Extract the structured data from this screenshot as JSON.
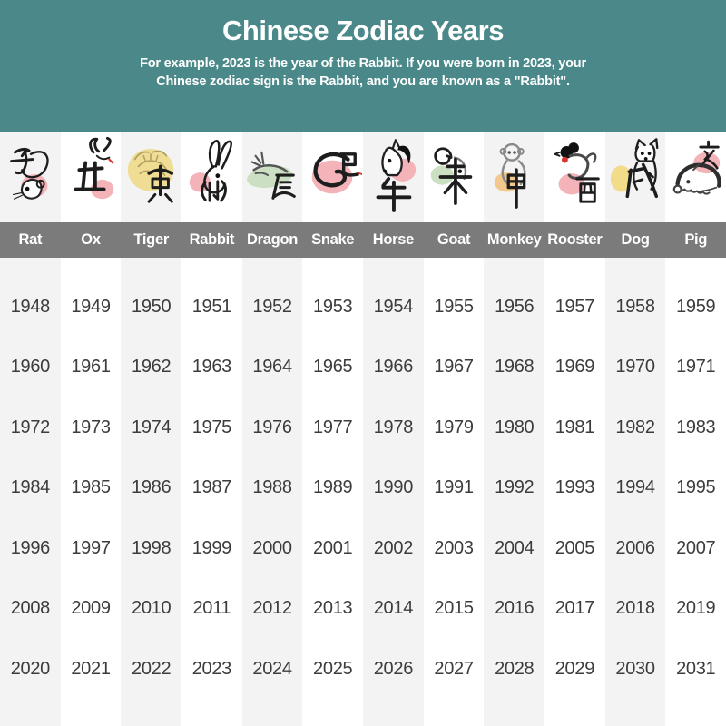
{
  "header": {
    "title": "Chinese Zodiac Years",
    "subtitle_line1": "For example, 2023 is the year of the Rabbit. If you were born in 2023, your",
    "subtitle_line2": "Chinese zodiac sign is the Rabbit, and you are known as a \"Rabbit\".",
    "background_color": "#4a8889",
    "text_color": "#ffffff"
  },
  "table": {
    "name_band_color": "#7b7b7b",
    "column_alt_color": "#f3f3f3",
    "column_base_color": "#ffffff",
    "year_text_color": "#3c3c3c",
    "animals": [
      {
        "name": "Rat",
        "hanzi": "子",
        "blob_color": "#f3b3b8"
      },
      {
        "name": "Ox",
        "hanzi": "丑",
        "blob_color": "#f3b3b8"
      },
      {
        "name": "Tiger",
        "hanzi": "寅",
        "blob_color": "#efdd93"
      },
      {
        "name": "Rabbit",
        "hanzi": "卯",
        "blob_color": "#f3b3b8"
      },
      {
        "name": "Dragon",
        "hanzi": "辰",
        "blob_color": "#cbe0c3"
      },
      {
        "name": "Snake",
        "hanzi": "巳",
        "blob_color": "#f3b3b8"
      },
      {
        "name": "Horse",
        "hanzi": "午",
        "blob_color": "#f3b3b8"
      },
      {
        "name": "Goat",
        "hanzi": "未",
        "blob_color": "#cbe0c3"
      },
      {
        "name": "Monkey",
        "hanzi": "申",
        "blob_color": "#f3c98b"
      },
      {
        "name": "Rooster",
        "hanzi": "酉",
        "blob_color": "#f3b3b8"
      },
      {
        "name": "Dog",
        "hanzi": "戌",
        "blob_color": "#f2dc8a"
      },
      {
        "name": "Pig",
        "hanzi": "亥",
        "blob_color": "#f3b3b8"
      }
    ]
  },
  "chart_data": {
    "type": "table",
    "title": "Chinese Zodiac Years",
    "subtitle": "For example, 2023 is the year of the Rabbit. If you were born in 2023, your Chinese zodiac sign is the Rabbit, and you are known as a \"Rabbit\".",
    "columns": [
      "Rat",
      "Ox",
      "Tiger",
      "Rabbit",
      "Dragon",
      "Snake",
      "Horse",
      "Goat",
      "Monkey",
      "Rooster",
      "Dog",
      "Pig"
    ],
    "rows": [
      [
        1948,
        1949,
        1950,
        1951,
        1952,
        1953,
        1954,
        1955,
        1956,
        1957,
        1958,
        1959
      ],
      [
        1960,
        1961,
        1962,
        1963,
        1964,
        1965,
        1966,
        1967,
        1968,
        1969,
        1970,
        1971
      ],
      [
        1972,
        1973,
        1974,
        1975,
        1976,
        1977,
        1978,
        1979,
        1980,
        1981,
        1982,
        1983
      ],
      [
        1984,
        1985,
        1986,
        1987,
        1988,
        1989,
        1990,
        1991,
        1992,
        1993,
        1994,
        1995
      ],
      [
        1996,
        1997,
        1998,
        1999,
        2000,
        2001,
        2002,
        2003,
        2004,
        2005,
        2006,
        2007
      ],
      [
        2008,
        2009,
        2010,
        2011,
        2012,
        2013,
        2014,
        2015,
        2016,
        2017,
        2018,
        2019
      ],
      [
        2020,
        2021,
        2022,
        2023,
        2024,
        2025,
        2026,
        2027,
        2028,
        2029,
        2030,
        2031
      ]
    ],
    "layout": "12 animal columns with alternating shaded backgrounds; 7 year rows per column; each year in a column shares that column's zodiac sign"
  }
}
